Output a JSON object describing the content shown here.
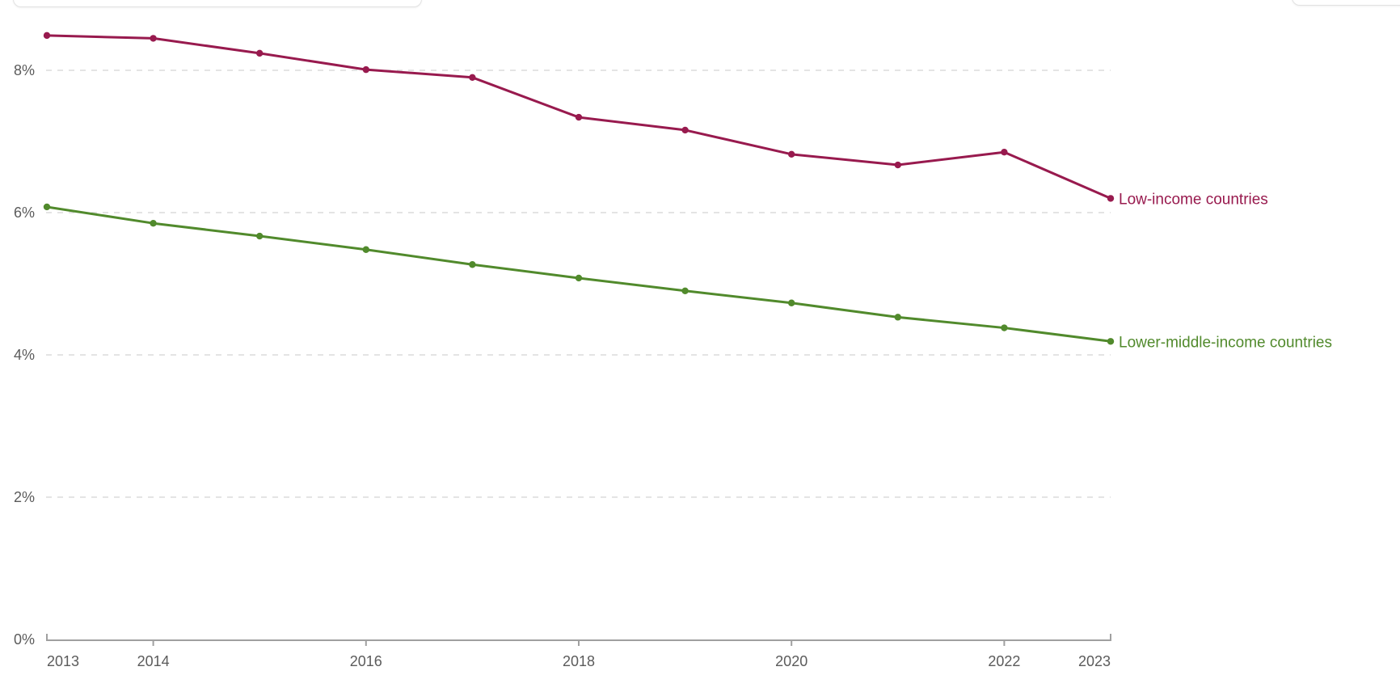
{
  "chart_data": {
    "type": "line",
    "title": "",
    "xlabel": "",
    "ylabel": "",
    "x": [
      2013,
      2014,
      2015,
      2016,
      2017,
      2018,
      2019,
      2020,
      2021,
      2022,
      2023
    ],
    "series": [
      {
        "name": "Low-income countries",
        "color": "#981a4e",
        "values": [
          8.49,
          8.45,
          8.24,
          8.01,
          7.9,
          7.34,
          7.16,
          6.82,
          6.67,
          6.85,
          6.2
        ]
      },
      {
        "name": "Lower-middle-income countries",
        "color": "#518a2c",
        "values": [
          6.08,
          5.85,
          5.67,
          5.48,
          5.27,
          5.08,
          4.9,
          4.73,
          4.53,
          4.38,
          4.19
        ]
      }
    ],
    "xlim": [
      2013,
      2023
    ],
    "ylim": [
      0,
      9
    ],
    "x_ticks": [
      {
        "value": 2013,
        "label": "2013"
      },
      {
        "value": 2014,
        "label": "2014"
      },
      {
        "value": 2016,
        "label": "2016"
      },
      {
        "value": 2018,
        "label": "2018"
      },
      {
        "value": 2020,
        "label": "2020"
      },
      {
        "value": 2022,
        "label": "2022"
      },
      {
        "value": 2023,
        "label": "2023"
      }
    ],
    "y_ticks": [
      {
        "value": 0,
        "label": "0%"
      },
      {
        "value": 2,
        "label": "2%"
      },
      {
        "value": 4,
        "label": "4%"
      },
      {
        "value": 6,
        "label": "6%"
      },
      {
        "value": 8,
        "label": "8%"
      }
    ],
    "grid": "horizontal-dashed",
    "legend_position": "line-end-labels"
  },
  "colors": {
    "background": "#ffffff",
    "axis_line": "#a0a0a0",
    "tick_text": "#5b5b5b",
    "gridline": "#dcdcdc"
  }
}
